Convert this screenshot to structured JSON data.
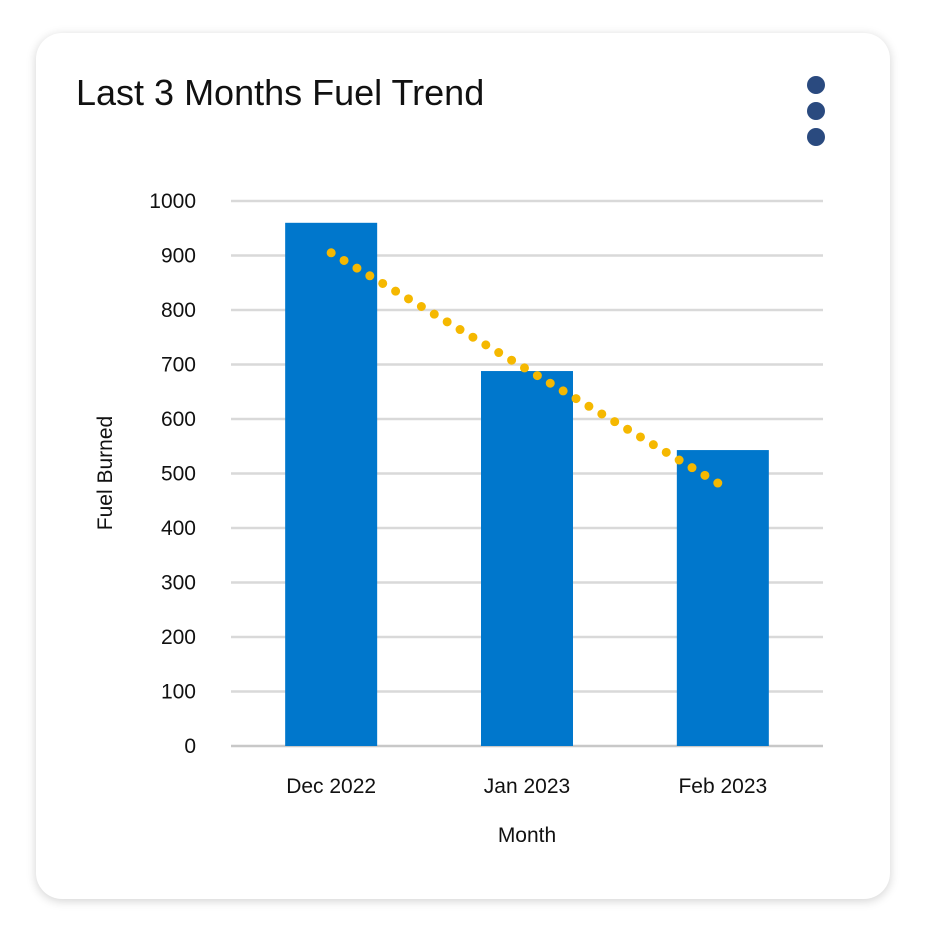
{
  "card": {
    "title": "Last 3 Months Fuel Trend",
    "menu_icon": "more-vertical-icon"
  },
  "chart_data": {
    "type": "bar",
    "title": "Last 3 Months Fuel Trend",
    "xlabel": "Month",
    "ylabel": "Fuel Burned",
    "categories": [
      "Dec 2022",
      "Jan 2023",
      "Feb 2023"
    ],
    "values": [
      960,
      688,
      543
    ],
    "ylim": [
      0,
      1000
    ],
    "yticks": [
      "0",
      "100",
      "200",
      "300",
      "400",
      "500",
      "600",
      "700",
      "800",
      "900",
      "1000"
    ],
    "grid": true,
    "bar_color": "#0077CC",
    "trendline": {
      "type": "linear",
      "style": "dotted",
      "color": "#F5B800",
      "start": 905,
      "end": 477
    }
  }
}
